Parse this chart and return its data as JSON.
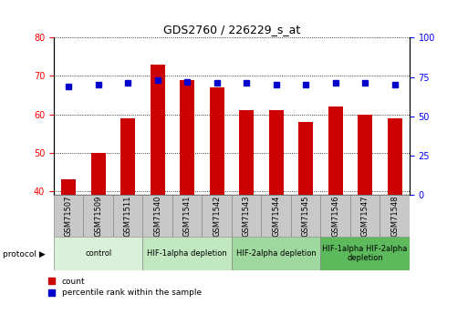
{
  "title": "GDS2760 / 226229_s_at",
  "samples": [
    "GSM71507",
    "GSM71509",
    "GSM71511",
    "GSM71540",
    "GSM71541",
    "GSM71542",
    "GSM71543",
    "GSM71544",
    "GSM71545",
    "GSM71546",
    "GSM71547",
    "GSM71548"
  ],
  "counts": [
    43,
    50,
    59,
    73,
    69,
    67,
    61,
    61,
    58,
    62,
    60,
    59
  ],
  "percentile_ranks": [
    69,
    70,
    71,
    73,
    72,
    71,
    71,
    70,
    70,
    71,
    71,
    70
  ],
  "ylim_left": [
    39,
    80
  ],
  "ylim_right": [
    0,
    100
  ],
  "yticks_left": [
    40,
    50,
    60,
    70,
    80
  ],
  "yticks_right": [
    0,
    25,
    50,
    75,
    100
  ],
  "bar_color": "#cc0000",
  "dot_color": "#0000cc",
  "protocol_groups": [
    {
      "label": "control",
      "start": 0,
      "end": 2,
      "color": "#d9f0d9"
    },
    {
      "label": "HIF-1alpha depletion",
      "start": 3,
      "end": 5,
      "color": "#c2e8c2"
    },
    {
      "label": "HIF-2alpha depletion",
      "start": 6,
      "end": 8,
      "color": "#9ed89e"
    },
    {
      "label": "HIF-1alpha HIF-2alpha\ndepletion",
      "start": 9,
      "end": 11,
      "color": "#5cba5c"
    }
  ],
  "tick_label_bg": "#c8c8c8",
  "legend_count_label": "count",
  "legend_pct_label": "percentile rank within the sample",
  "protocol_label": "protocol",
  "bar_width": 0.5,
  "bar_bottom": 39,
  "title_fontsize": 9,
  "axis_fontsize": 7,
  "tick_fontsize": 6,
  "proto_fontsize": 6
}
